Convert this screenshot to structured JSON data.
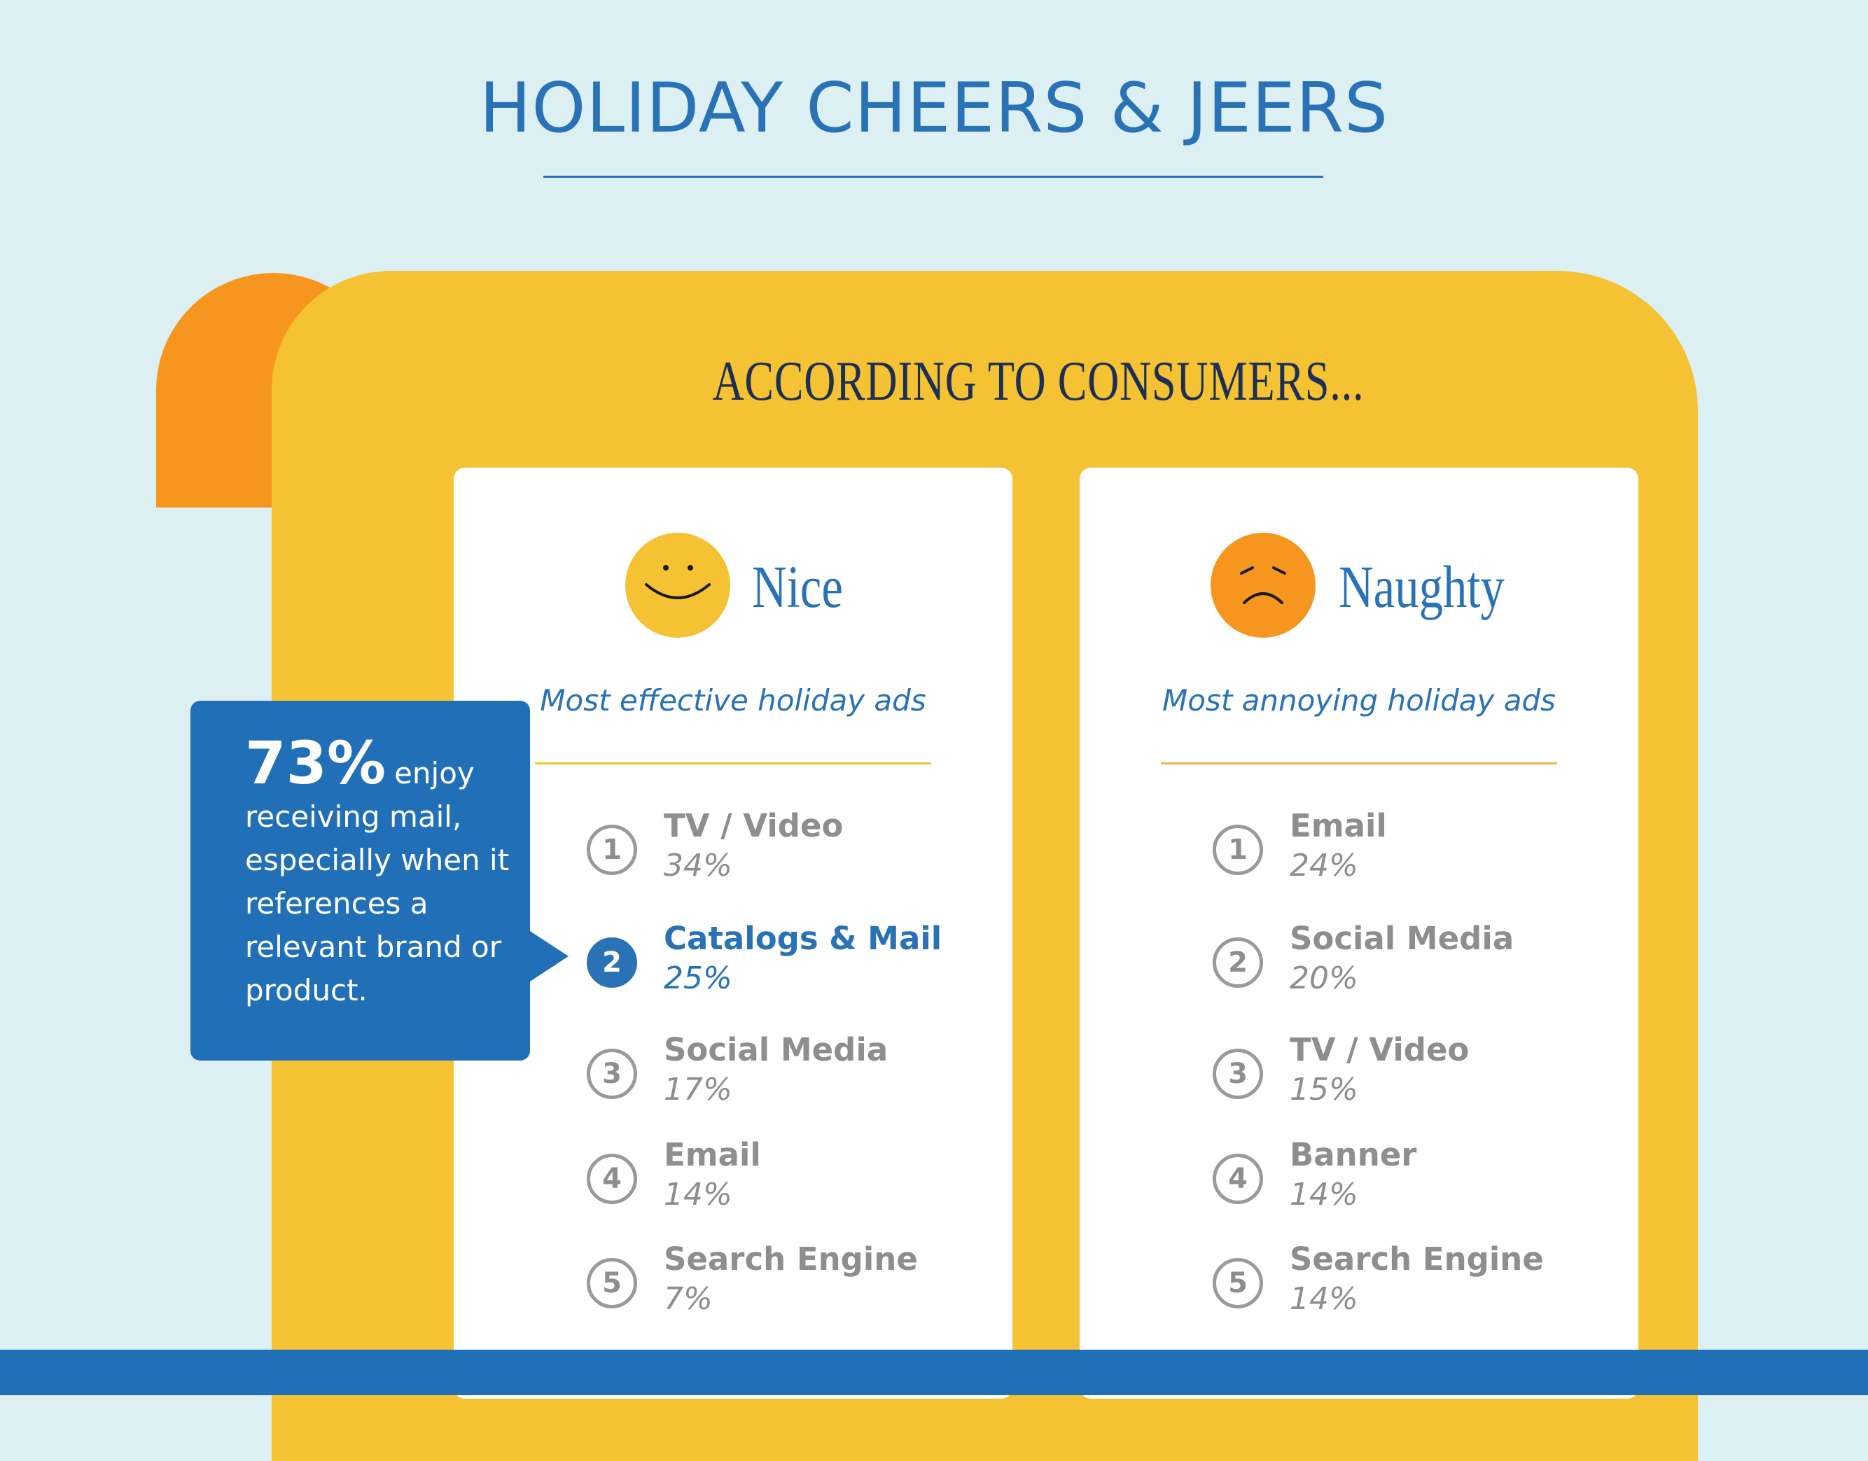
{
  "title": "HOLIDAY CHEERS & JEERS",
  "subheading": "ACCORDING TO CONSUMERS...",
  "colors": {
    "background": "#dcf0f4",
    "blue": "#2a72b6",
    "yellow": "#f4c232",
    "orange": "#f6961e",
    "gray_text": "#8e8e8e"
  },
  "nice": {
    "icon": "smiley-face-icon",
    "title": "Nice",
    "subtitle": "Most effective holiday ads",
    "items": [
      {
        "rank": "1",
        "name": "TV / Video",
        "pct": "34%"
      },
      {
        "rank": "2",
        "name": "Catalogs & Mail",
        "pct": "25%"
      },
      {
        "rank": "3",
        "name": "Social Media",
        "pct": "17%"
      },
      {
        "rank": "4",
        "name": "Email",
        "pct": "14%"
      },
      {
        "rank": "5",
        "name": "Search Engine",
        "pct": "7%"
      }
    ]
  },
  "naughty": {
    "icon": "frowning-face-icon",
    "title": "Naughty",
    "subtitle": "Most annoying holiday ads",
    "items": [
      {
        "rank": "1",
        "name": "Email",
        "pct": "24%"
      },
      {
        "rank": "2",
        "name": "Social Media",
        "pct": "20%"
      },
      {
        "rank": "3",
        "name": "TV / Video",
        "pct": "15%"
      },
      {
        "rank": "4",
        "name": "Banner",
        "pct": "14%"
      },
      {
        "rank": "5",
        "name": "Search Engine",
        "pct": "14%"
      }
    ]
  },
  "callout": {
    "stat": "73%",
    "text": "enjoy receiving mail, especially when it references a relevant brand or product."
  }
}
